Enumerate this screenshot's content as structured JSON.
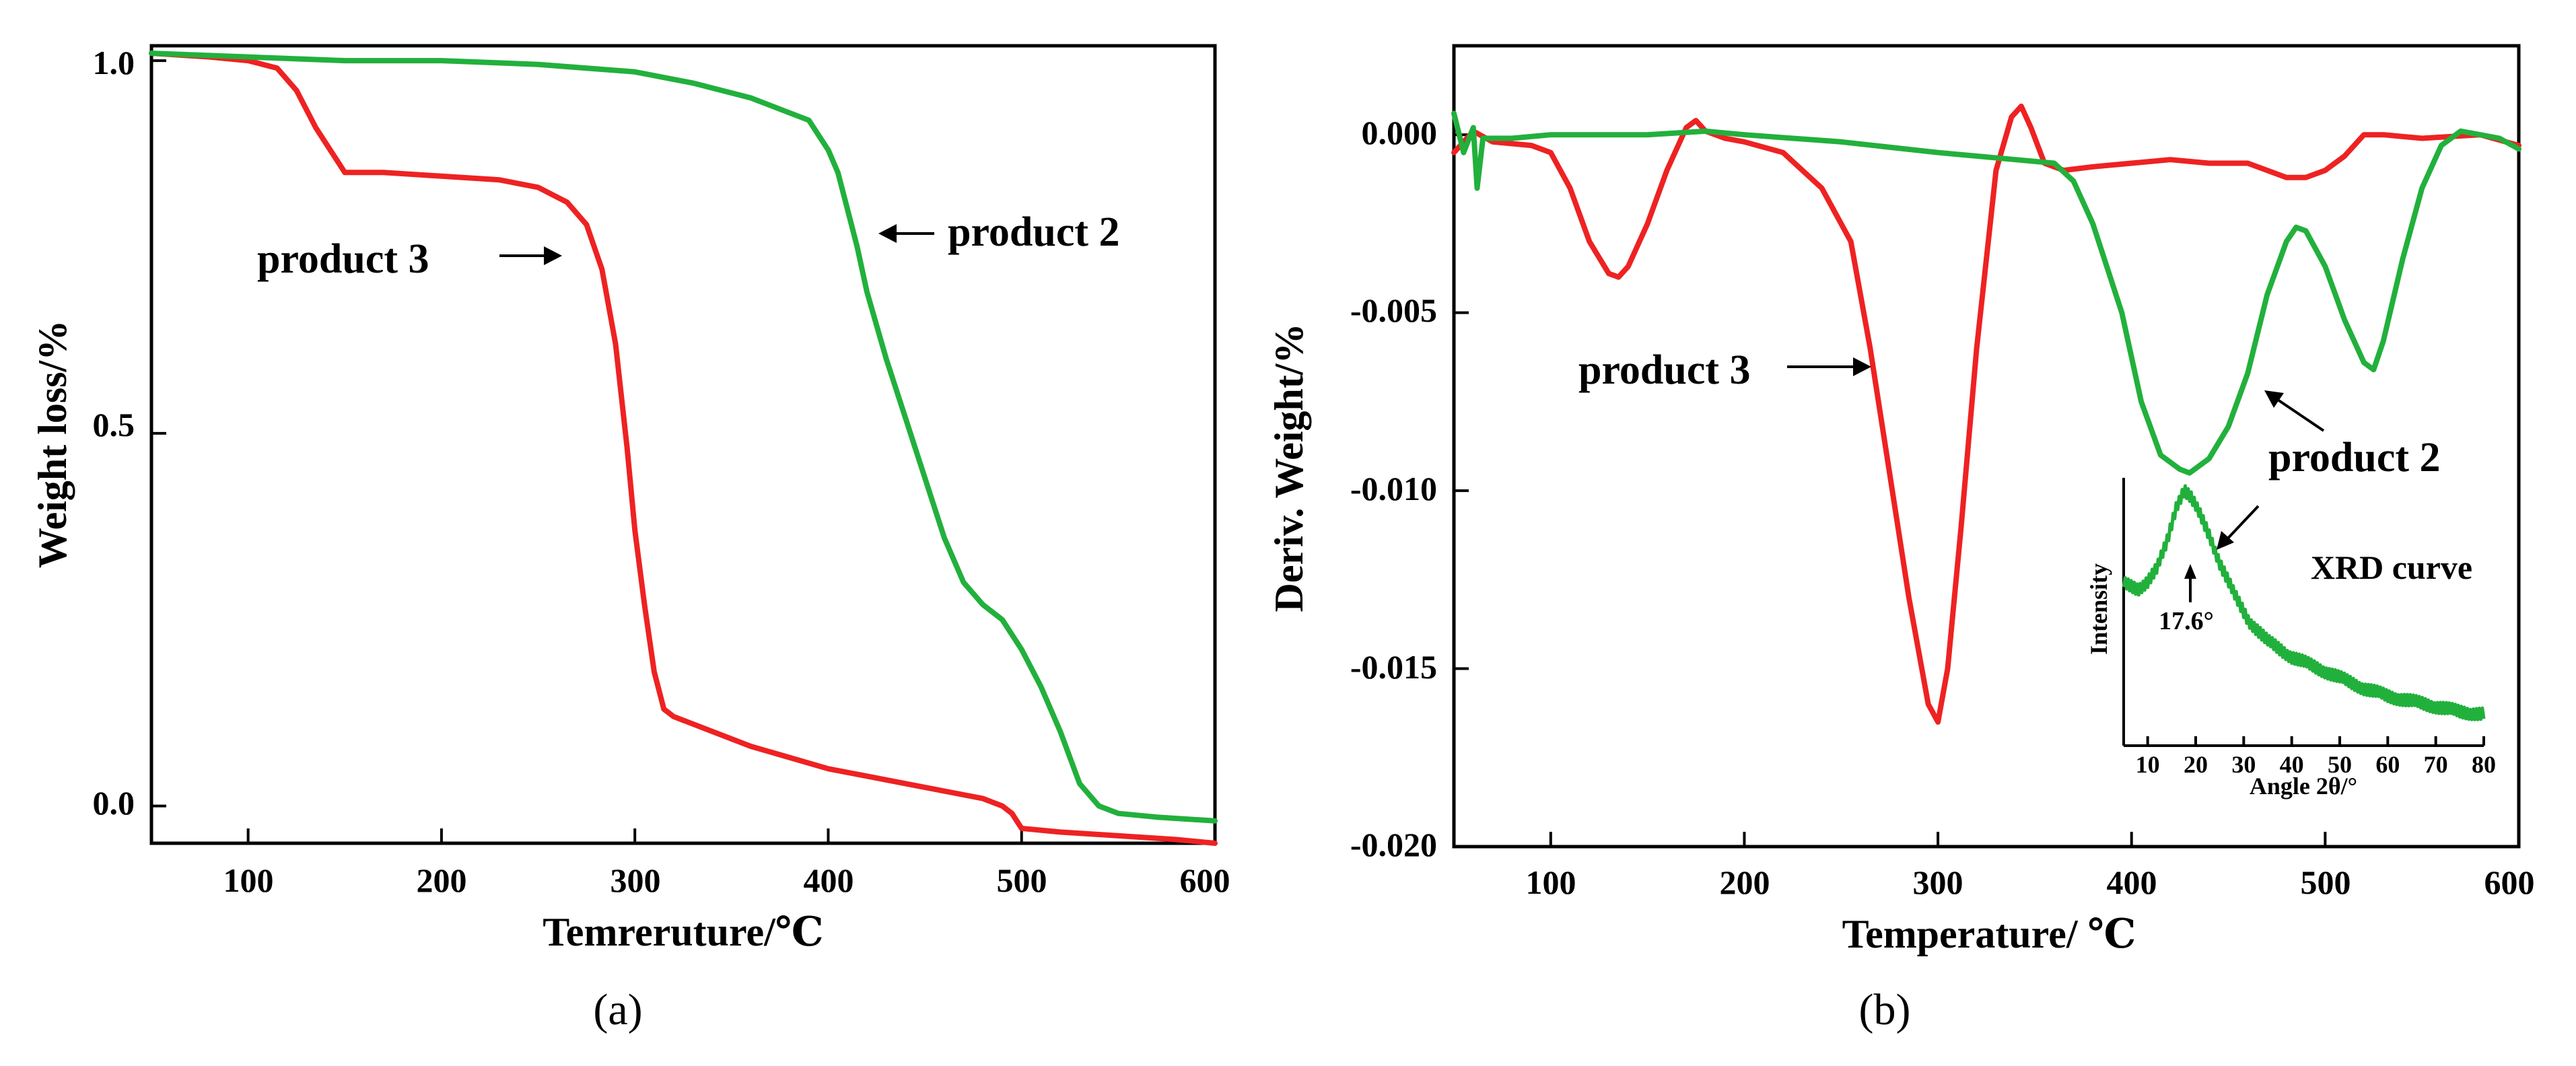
{
  "chart_data": [
    {
      "type": "line",
      "panel_label": "(a)",
      "xlabel": "Temreruture/℃",
      "ylabel": "Weight loss/%",
      "xlim": [
        50,
        600
      ],
      "ylim": [
        -0.05,
        1.02
      ],
      "xticks": [
        100,
        200,
        300,
        400,
        500,
        600
      ],
      "xtick_labels": [
        "100",
        "200",
        "300",
        "400",
        "500",
        "600"
      ],
      "yticks": [
        0.0,
        0.5,
        1.0
      ],
      "ytick_labels": [
        "0.0",
        "0.5",
        "1.0"
      ],
      "series": [
        {
          "name": "product 3",
          "color": "#ee2222",
          "x": [
            50,
            80,
            100,
            115,
            125,
            135,
            145,
            150,
            170,
            200,
            230,
            250,
            265,
            275,
            283,
            290,
            296,
            300,
            305,
            310,
            315,
            320,
            340,
            360,
            380,
            400,
            420,
            440,
            460,
            480,
            490,
            495,
            500,
            520,
            550,
            580,
            600
          ],
          "y": [
            1.01,
            1.005,
            1.0,
            0.99,
            0.96,
            0.91,
            0.87,
            0.85,
            0.85,
            0.845,
            0.84,
            0.83,
            0.81,
            0.78,
            0.72,
            0.62,
            0.48,
            0.37,
            0.27,
            0.18,
            0.13,
            0.12,
            0.1,
            0.08,
            0.065,
            0.05,
            0.04,
            0.03,
            0.02,
            0.01,
            0.0,
            -0.01,
            -0.03,
            -0.035,
            -0.04,
            -0.045,
            -0.05
          ]
        },
        {
          "name": "product 2",
          "color": "#22b03c",
          "x": [
            50,
            100,
            150,
            200,
            250,
            300,
            330,
            360,
            380,
            390,
            400,
            405,
            410,
            415,
            420,
            430,
            440,
            450,
            460,
            470,
            480,
            490,
            500,
            510,
            520,
            530,
            540,
            550,
            570,
            600
          ],
          "y": [
            1.01,
            1.005,
            1.0,
            1.0,
            0.995,
            0.985,
            0.97,
            0.95,
            0.93,
            0.92,
            0.88,
            0.85,
            0.8,
            0.75,
            0.69,
            0.6,
            0.52,
            0.44,
            0.36,
            0.3,
            0.27,
            0.25,
            0.21,
            0.16,
            0.1,
            0.03,
            0.0,
            -0.01,
            -0.015,
            -0.02
          ]
        }
      ],
      "annotations": [
        {
          "text_prefix": "product ",
          "text_bold": "3",
          "arrow": "right"
        },
        {
          "text_prefix": "product ",
          "text_bold": "2",
          "arrow": "left"
        }
      ]
    },
    {
      "type": "line",
      "panel_label": "(b)",
      "xlabel": "Temperature/ ℃",
      "ylabel": "Deriv. Weight/%",
      "xlim": [
        50,
        600
      ],
      "ylim": [
        -0.02,
        0.0025
      ],
      "xticks": [
        100,
        200,
        300,
        400,
        500,
        600
      ],
      "xtick_labels": [
        "100",
        "200",
        "300",
        "400",
        "500",
        "600"
      ],
      "yticks": [
        0.0,
        -0.005,
        -0.01,
        -0.015,
        -0.02
      ],
      "ytick_labels": [
        "0.000",
        "-0.005",
        "-0.010",
        "-0.015",
        "-0.020"
      ],
      "series": [
        {
          "name": "product 3",
          "color": "#ee2222",
          "x": [
            50,
            60,
            70,
            90,
            100,
            110,
            120,
            130,
            135,
            140,
            150,
            160,
            170,
            175,
            180,
            190,
            200,
            220,
            240,
            255,
            265,
            275,
            285,
            295,
            300,
            305,
            312,
            320,
            330,
            338,
            343,
            348,
            355,
            365,
            380,
            400,
            420,
            440,
            460,
            480,
            490,
            500,
            510,
            520,
            530,
            550,
            580,
            600
          ],
          "y": [
            -0.0005,
            0.0001,
            -0.0002,
            -0.0003,
            -0.0005,
            -0.0015,
            -0.003,
            -0.0039,
            -0.004,
            -0.0037,
            -0.0025,
            -0.001,
            0.0002,
            0.0004,
            0.0001,
            -0.0001,
            -0.0002,
            -0.0005,
            -0.0015,
            -0.003,
            -0.006,
            -0.0095,
            -0.013,
            -0.016,
            -0.0165,
            -0.015,
            -0.011,
            -0.006,
            -0.001,
            0.0005,
            0.0008,
            0.0002,
            -0.0008,
            -0.001,
            -0.0009,
            -0.0008,
            -0.0007,
            -0.0008,
            -0.0008,
            -0.0012,
            -0.0012,
            -0.001,
            -0.0006,
            0.0,
            0.0,
            -0.0001,
            0.0,
            -0.0003
          ]
        },
        {
          "name": "product 2",
          "color": "#22b03c",
          "x": [
            50,
            55,
            60,
            62,
            65,
            80,
            100,
            150,
            180,
            200,
            250,
            300,
            340,
            360,
            370,
            380,
            395,
            405,
            415,
            425,
            430,
            440,
            450,
            460,
            470,
            480,
            485,
            490,
            500,
            510,
            520,
            525,
            530,
            540,
            550,
            560,
            570,
            580,
            590,
            600
          ],
          "y": [
            0.0006,
            -0.0005,
            0.0002,
            -0.0015,
            -0.0001,
            -0.0001,
            0.0,
            0.0,
            0.0001,
            0.0,
            -0.0002,
            -0.0005,
            -0.0007,
            -0.0008,
            -0.0013,
            -0.0025,
            -0.005,
            -0.0075,
            -0.009,
            -0.0094,
            -0.0095,
            -0.0091,
            -0.0082,
            -0.0067,
            -0.0045,
            -0.003,
            -0.0026,
            -0.0027,
            -0.0037,
            -0.0052,
            -0.0064,
            -0.0066,
            -0.0058,
            -0.0035,
            -0.0015,
            -0.0003,
            0.0001,
            0.0,
            -0.0001,
            -0.0004
          ]
        }
      ],
      "annotations": [
        {
          "text_prefix": "product ",
          "text_bold": "3",
          "arrow": "right"
        },
        {
          "text_prefix": "product ",
          "text_bold": "2",
          "arrow": "up-left"
        }
      ],
      "inset": {
        "type": "line",
        "title": "XRD curve",
        "xlabel": "Angle 2θ/°",
        "ylabel": "Intensity",
        "xlim": [
          5,
          80
        ],
        "xticks": [
          10,
          20,
          30,
          40,
          50,
          60,
          70,
          80
        ],
        "xtick_labels": [
          "10",
          "20",
          "30",
          "40",
          "50",
          "60",
          "70",
          "80"
        ],
        "peak_label": "17.6°",
        "peak_angle": 17.6,
        "color": "#22b03c",
        "x": [
          5,
          8,
          10,
          12,
          14,
          16,
          17.6,
          19,
          21,
          23,
          25,
          28,
          31,
          35,
          40,
          45,
          50,
          55,
          60,
          65,
          70,
          75,
          80
        ],
        "y": [
          0.62,
          0.6,
          0.63,
          0.68,
          0.78,
          0.92,
          0.98,
          0.95,
          0.88,
          0.8,
          0.7,
          0.58,
          0.48,
          0.4,
          0.34,
          0.3,
          0.26,
          0.22,
          0.19,
          0.17,
          0.15,
          0.13,
          0.12
        ]
      }
    }
  ]
}
